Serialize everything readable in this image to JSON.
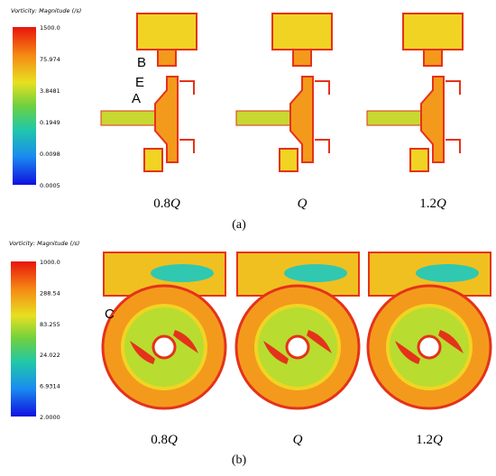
{
  "panels": [
    {
      "label": "(a)",
      "colorbar": {
        "title": "Vorticity: Magnitude (/s)",
        "labels": [
          "1500.0",
          "75.974",
          "3.8481",
          "0.1949",
          "0.0098",
          "0.0005"
        ]
      },
      "annotations": [
        "B",
        "E",
        "A"
      ],
      "cases": [
        {
          "coef": "0.8",
          "var": "Q"
        },
        {
          "var": "Q"
        },
        {
          "coef": "1.2",
          "var": "Q"
        }
      ]
    },
    {
      "label": "(b)",
      "colorbar": {
        "title": "Vorticity: Magnitude (/s)",
        "labels": [
          "1000.0",
          "288.54",
          "83.255",
          "24.022",
          "6.9314",
          "2.0000"
        ]
      },
      "annotations": [
        "C"
      ],
      "cases": [
        {
          "coef": "0.8",
          "var": "Q"
        },
        {
          "var": "Q"
        },
        {
          "coef": "1.2",
          "var": "Q"
        }
      ]
    }
  ]
}
